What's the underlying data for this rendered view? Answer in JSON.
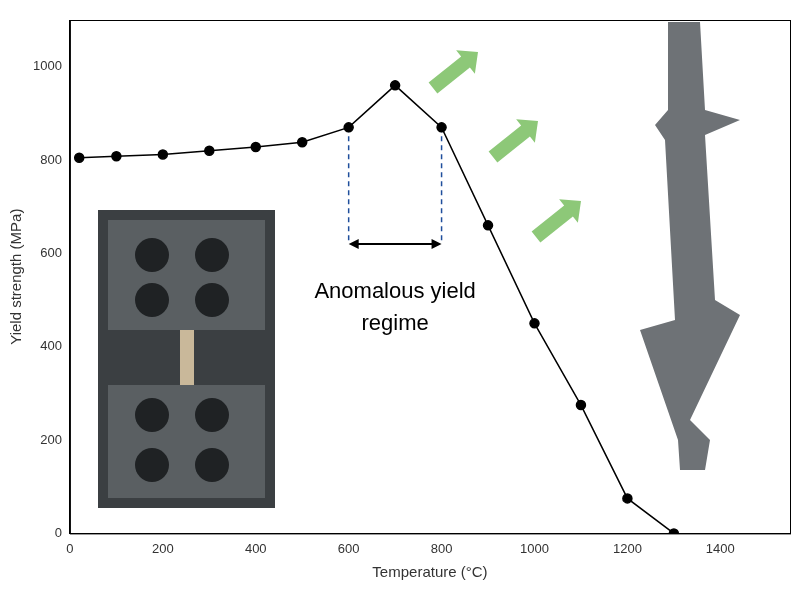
{
  "chart_data": {
    "type": "line",
    "x_label": "Temperature (°C)",
    "y_label": "Yield strength (MPa)",
    "x": [
      20,
      100,
      200,
      300,
      400,
      500,
      600,
      700,
      800,
      900,
      1000,
      1100,
      1200,
      1300
    ],
    "values": [
      805,
      808,
      812,
      820,
      828,
      838,
      870,
      960,
      870,
      660,
      450,
      275,
      75,
      0
    ],
    "color": "#000000",
    "marker": "circle",
    "line_style": "solid",
    "xlim": [
      0,
      1550
    ],
    "xticks": [
      0,
      200,
      400,
      600,
      800,
      1000,
      1200,
      1400
    ],
    "ylim": [
      0,
      1100
    ],
    "yticks": [
      0,
      200,
      400,
      600,
      800,
      1000
    ],
    "grid": false,
    "annotations": [
      {
        "text": "Anomalous yield regime",
        "x": [
          600,
          800
        ],
        "y": 620
      }
    ]
  }
}
